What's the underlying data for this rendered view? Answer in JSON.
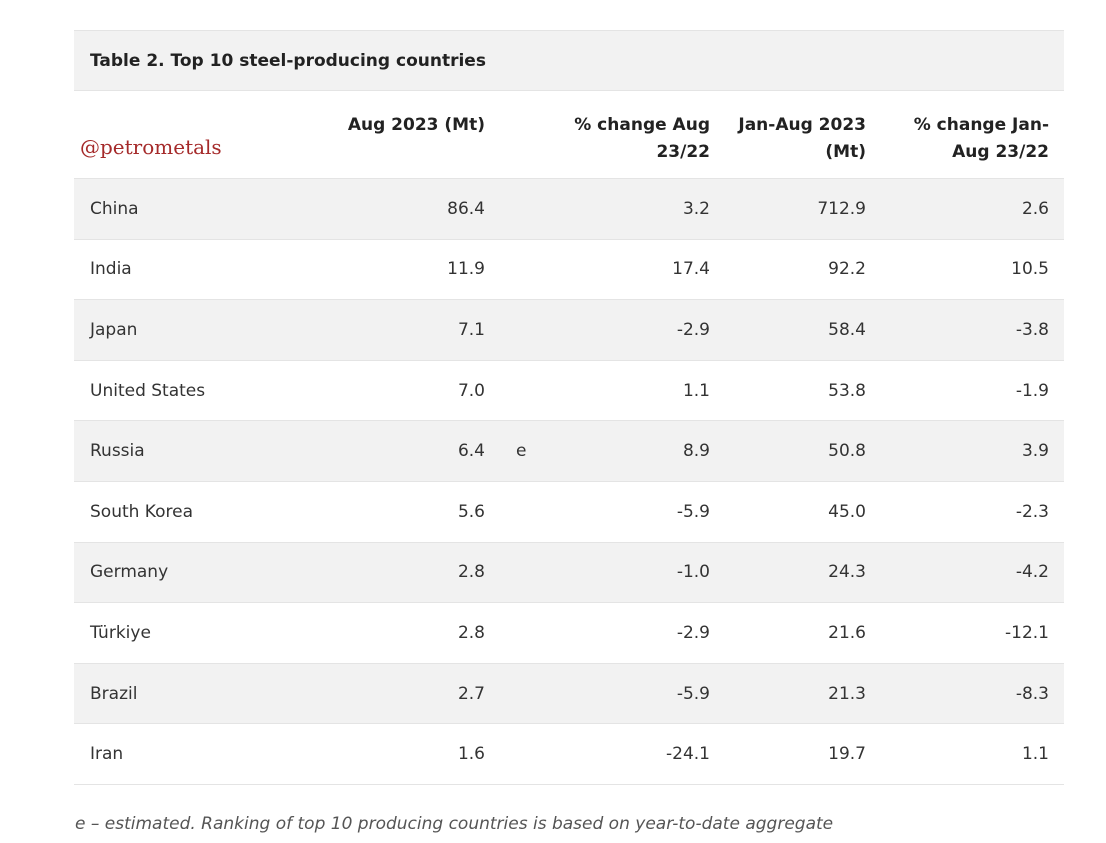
{
  "table": {
    "title": "Table 2. Top 10 steel-producing countries",
    "watermark": "@petrometals",
    "columns": {
      "aug": "Aug 2023 (Mt)",
      "pct_aug": "% change Aug 23/22",
      "ytd": "Jan-Aug 2023 (Mt)",
      "pct_ytd": "% change Jan-Aug 23/22"
    },
    "rows": [
      {
        "country": "China",
        "aug": "86.4",
        "flag": "",
        "pct_aug": "3.2",
        "ytd": "712.9",
        "pct_ytd": "2.6"
      },
      {
        "country": "India",
        "aug": "11.9",
        "flag": "",
        "pct_aug": "17.4",
        "ytd": "92.2",
        "pct_ytd": "10.5"
      },
      {
        "country": "Japan",
        "aug": "7.1",
        "flag": "",
        "pct_aug": "-2.9",
        "ytd": "58.4",
        "pct_ytd": "-3.8"
      },
      {
        "country": "United States",
        "aug": "7.0",
        "flag": "",
        "pct_aug": "1.1",
        "ytd": "53.8",
        "pct_ytd": "-1.9"
      },
      {
        "country": "Russia",
        "aug": "6.4",
        "flag": "e",
        "pct_aug": "8.9",
        "ytd": "50.8",
        "pct_ytd": "3.9"
      },
      {
        "country": "South Korea",
        "aug": "5.6",
        "flag": "",
        "pct_aug": "-5.9",
        "ytd": "45.0",
        "pct_ytd": "-2.3"
      },
      {
        "country": "Germany",
        "aug": "2.8",
        "flag": "",
        "pct_aug": "-1.0",
        "ytd": "24.3",
        "pct_ytd": "-4.2"
      },
      {
        "country": "Türkiye",
        "aug": "2.8",
        "flag": "",
        "pct_aug": "-2.9",
        "ytd": "21.6",
        "pct_ytd": "-12.1"
      },
      {
        "country": "Brazil",
        "aug": "2.7",
        "flag": "",
        "pct_aug": "-5.9",
        "ytd": "21.3",
        "pct_ytd": "-8.3"
      },
      {
        "country": "Iran",
        "aug": "1.6",
        "flag": "",
        "pct_aug": "-24.1",
        "ytd": "19.7",
        "pct_ytd": "1.1"
      }
    ],
    "footnote": "e – estimated. Ranking of top 10 producing countries is based on year-to-date aggregate"
  }
}
